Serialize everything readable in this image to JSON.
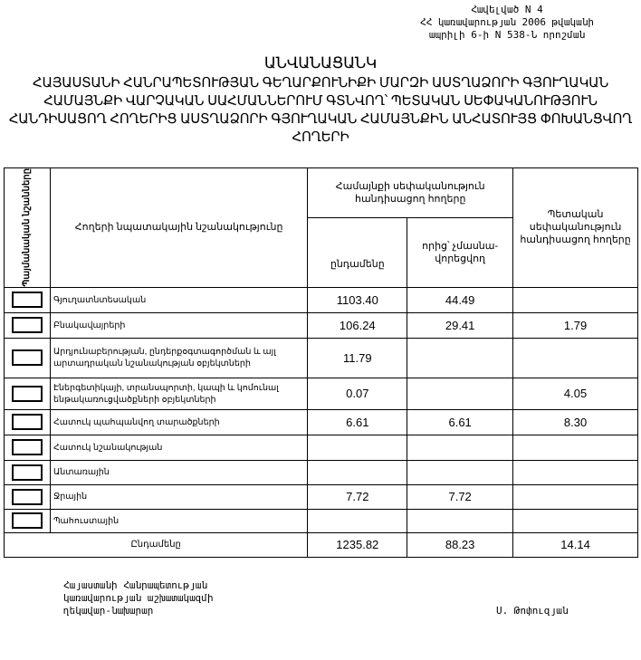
{
  "annex": [
    "Հավելված N 4",
    "ՀՀ կառավարության 2006 թվականի",
    "ապրիլի 6-ի N 538-Ն որոշման"
  ],
  "title": [
    "ԱՆՎԱՆԱՑԱՆԿ",
    "ՀԱՅԱՍՏԱՆԻ ՀԱՆՐԱՊԵՏՈՒԹՅԱՆ ԳԵՂԱՐՔՈՒՆԻՔԻ ՄԱՐԶԻ ԱՍՏՂԱՁՈՐԻ ԳՅՈՒՂԱԿԱՆ",
    "ՀԱՄԱՅՆՔԻ ՎԱՐՉԱԿԱՆ ՍԱՀՄԱՆՆԵՐՈՒՄ ԳՏՆՎՈՂ՝ ՊԵՏԱԿԱՆ ՍԵՓԱԿԱՆՈՒԹՅՈՒՆ",
    "ՀԱՆԴԻՍԱՑՈՂ ՀՈՂԵՐԻՑ ԱՍՏՂԱՁՈՐԻ ԳՅՈՒՂԱԿԱՆ ՀԱՄԱՅՆՔԻՆ ԱՆՀԱՏՈՒՅՑ ՓՈԽԱՆՑՎՈՂ",
    "ՀՈՂԵՐԻ"
  ],
  "table": {
    "headers": {
      "symbols": "Պայմանական նշանները",
      "purpose": "Հողերի նպատակային նշանակությունը",
      "community": "Համայնքի սեփականություն հանդիսացող հողերը",
      "total": "ընդամենը",
      "of_which": "որից՝ չմասնա-վորեցվող",
      "state": "Պետական սեփականություն հանդիսացող հողերը"
    },
    "rows": [
      {
        "label": "Գյուղատնտեսական",
        "total": "1103.40",
        "of_which": "44.49",
        "state": ""
      },
      {
        "label": "Բնակավայրերի",
        "total": "106.24",
        "of_which": "29.41",
        "state": "1.79"
      },
      {
        "label": "Արդյունաբերության, ընդերքօգտագործման և այլ արտադրական նշանակության օբյեկտների",
        "total": "11.79",
        "of_which": "",
        "state": ""
      },
      {
        "label": "Էներգետիկայի, տրանսպորտի, կապի և կոմունալ ենթակառուցվածքների օբյեկտների",
        "total": "0.07",
        "of_which": "",
        "state": "4.05"
      },
      {
        "label": "Հատուկ պահպանվող տարածքների",
        "total": "6.61",
        "of_which": "6.61",
        "state": "8.30"
      },
      {
        "label": "Հատուկ նշանակության",
        "total": "",
        "of_which": "",
        "state": ""
      },
      {
        "label": "Անտառային",
        "total": "",
        "of_which": "",
        "state": ""
      },
      {
        "label": "Ջրային",
        "total": "7.72",
        "of_which": "7.72",
        "state": ""
      },
      {
        "label": "Պահուստային",
        "total": "",
        "of_which": "",
        "state": ""
      }
    ],
    "sum": {
      "label": "Ընդամենը",
      "total": "1235.82",
      "of_which": "88.23",
      "state": "14.14"
    }
  },
  "footer": {
    "lines": [
      "Հայաստանի Հանրապետության",
      "կառավարության աշխատակազմի",
      "ղեկավար-նախարար"
    ],
    "signature": "Ս. Թոփուզյան"
  }
}
